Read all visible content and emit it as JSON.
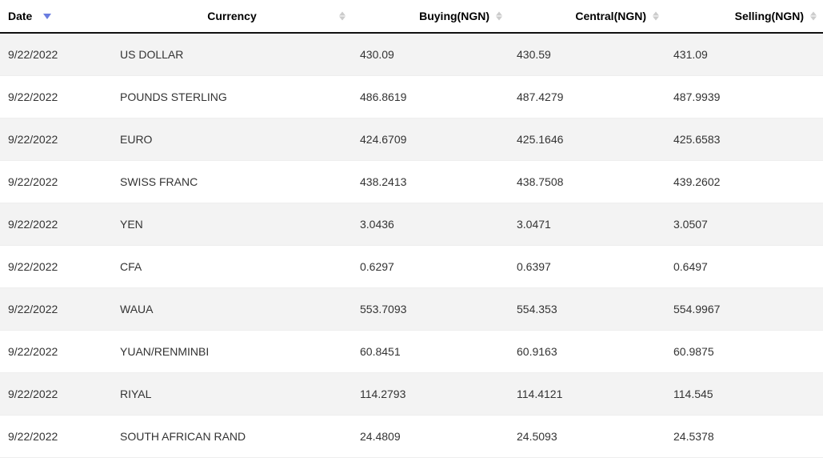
{
  "table": {
    "columns": [
      {
        "key": "date",
        "label": "Date",
        "sorted_desc": true,
        "show_arrows": false
      },
      {
        "key": "currency",
        "label": "Currency",
        "sorted_desc": false,
        "show_arrows": true
      },
      {
        "key": "buying",
        "label": "Buying(NGN)",
        "sorted_desc": false,
        "show_arrows": true
      },
      {
        "key": "central",
        "label": "Central(NGN)",
        "sorted_desc": false,
        "show_arrows": true
      },
      {
        "key": "selling",
        "label": "Selling(NGN)",
        "sorted_desc": false,
        "show_arrows": true
      }
    ],
    "rows": [
      {
        "date": "9/22/2022",
        "currency": "US DOLLAR",
        "buying": "430.09",
        "central": "430.59",
        "selling": "431.09"
      },
      {
        "date": "9/22/2022",
        "currency": "POUNDS STERLING",
        "buying": "486.8619",
        "central": "487.4279",
        "selling": "487.9939"
      },
      {
        "date": "9/22/2022",
        "currency": "EURO",
        "buying": "424.6709",
        "central": "425.1646",
        "selling": "425.6583"
      },
      {
        "date": "9/22/2022",
        "currency": "SWISS FRANC",
        "buying": "438.2413",
        "central": "438.7508",
        "selling": "439.2602"
      },
      {
        "date": "9/22/2022",
        "currency": "YEN",
        "buying": "3.0436",
        "central": "3.0471",
        "selling": "3.0507"
      },
      {
        "date": "9/22/2022",
        "currency": "CFA",
        "buying": "0.6297",
        "central": "0.6397",
        "selling": "0.6497"
      },
      {
        "date": "9/22/2022",
        "currency": "WAUA",
        "buying": "553.7093",
        "central": "554.353",
        "selling": "554.9967"
      },
      {
        "date": "9/22/2022",
        "currency": "YUAN/RENMINBI",
        "buying": "60.8451",
        "central": "60.9163",
        "selling": "60.9875"
      },
      {
        "date": "9/22/2022",
        "currency": "RIYAL",
        "buying": "114.2793",
        "central": "114.4121",
        "selling": "114.545"
      },
      {
        "date": "9/22/2022",
        "currency": "SOUTH AFRICAN RAND",
        "buying": "24.4809",
        "central": "24.5093",
        "selling": "24.5378"
      }
    ],
    "colors": {
      "header_border": "#111111",
      "row_odd_bg": "#f3f3f3",
      "row_even_bg": "#ffffff",
      "sort_caret": "#6a7de0",
      "sort_arrows": "#cccccc",
      "text": "#333333",
      "row_border": "#eeeeee"
    }
  }
}
